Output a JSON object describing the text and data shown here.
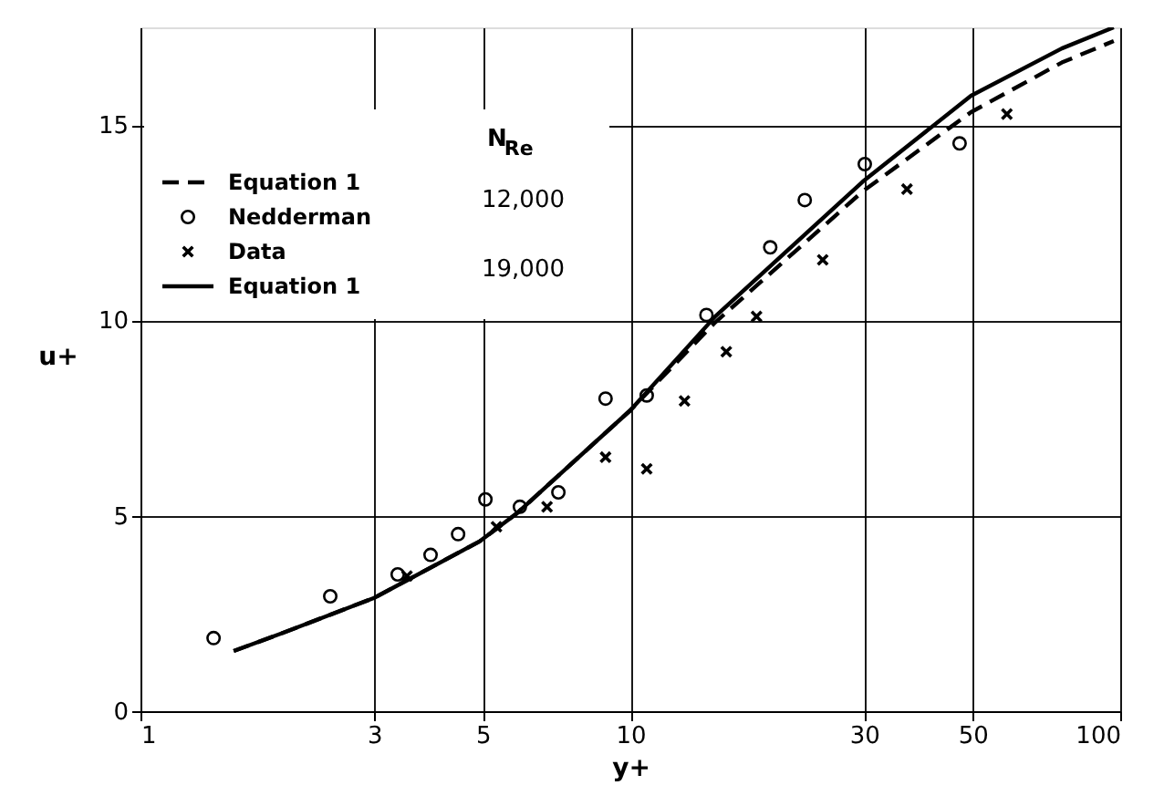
{
  "chart_data": {
    "type": "line",
    "xlabel": "y+",
    "ylabel": "u+",
    "log": "x",
    "xlim": [
      1,
      100
    ],
    "xticks": [
      1,
      3,
      5,
      10,
      30,
      50,
      100
    ],
    "ylim": [
      0,
      17.5
    ],
    "yticks": [
      0,
      5,
      10,
      15
    ],
    "grid": true,
    "legend": "top left",
    "legend_title": "N$_{Re}$",
    "annotations": [
      "12,000",
      "19,000"
    ],
    "series": [
      {
        "name": "Equation 1",
        "line_style": "dashed",
        "marker": "none",
        "color": "#000000",
        "x": [
          1.55,
          1.95,
          3.0,
          4.93,
          5.85,
          10,
          14.9,
          29.8,
          49.6,
          76,
          97
        ],
        "values": [
          1.54,
          2.0,
          2.9,
          4.35,
          5.05,
          7.7,
          9.95,
          13.3,
          15.33,
          16.6,
          17.15
        ]
      },
      {
        "name": "Nedderman",
        "type": "scatter",
        "marker": "circle",
        "color": "#000000",
        "x": [
          1.41,
          2.44,
          3.35,
          3.91,
          4.45,
          5.06,
          5.95,
          7.13,
          8.9,
          10.8,
          14.3,
          19.3,
          22.7,
          30.1,
          47
        ],
        "values": [
          1.87,
          2.94,
          3.5,
          4.0,
          4.53,
          5.42,
          5.23,
          5.6,
          8.0,
          8.08,
          10.14,
          11.87,
          13.08,
          14.0,
          14.53
        ]
      },
      {
        "name": "Data",
        "type": "scatter",
        "marker": "cross",
        "color": "#000000",
        "x": [
          3.5,
          5.33,
          6.76,
          8.9,
          10.8,
          12.9,
          15.7,
          18.1,
          24.7,
          36.7,
          58.7
        ],
        "values": [
          3.46,
          4.72,
          5.23,
          6.5,
          6.2,
          7.94,
          9.2,
          10.1,
          11.55,
          13.36,
          15.28
        ]
      },
      {
        "name": "Equation 1",
        "line_style": "solid",
        "marker": "none",
        "color": "#000000",
        "x": [
          1.55,
          1.95,
          3.0,
          4.93,
          5.85,
          10,
          14.9,
          29.8,
          49.6,
          76,
          97
        ],
        "values": [
          1.54,
          2.0,
          2.9,
          4.35,
          5.05,
          7.7,
          10.1,
          13.55,
          15.75,
          16.96,
          17.5
        ]
      }
    ]
  }
}
